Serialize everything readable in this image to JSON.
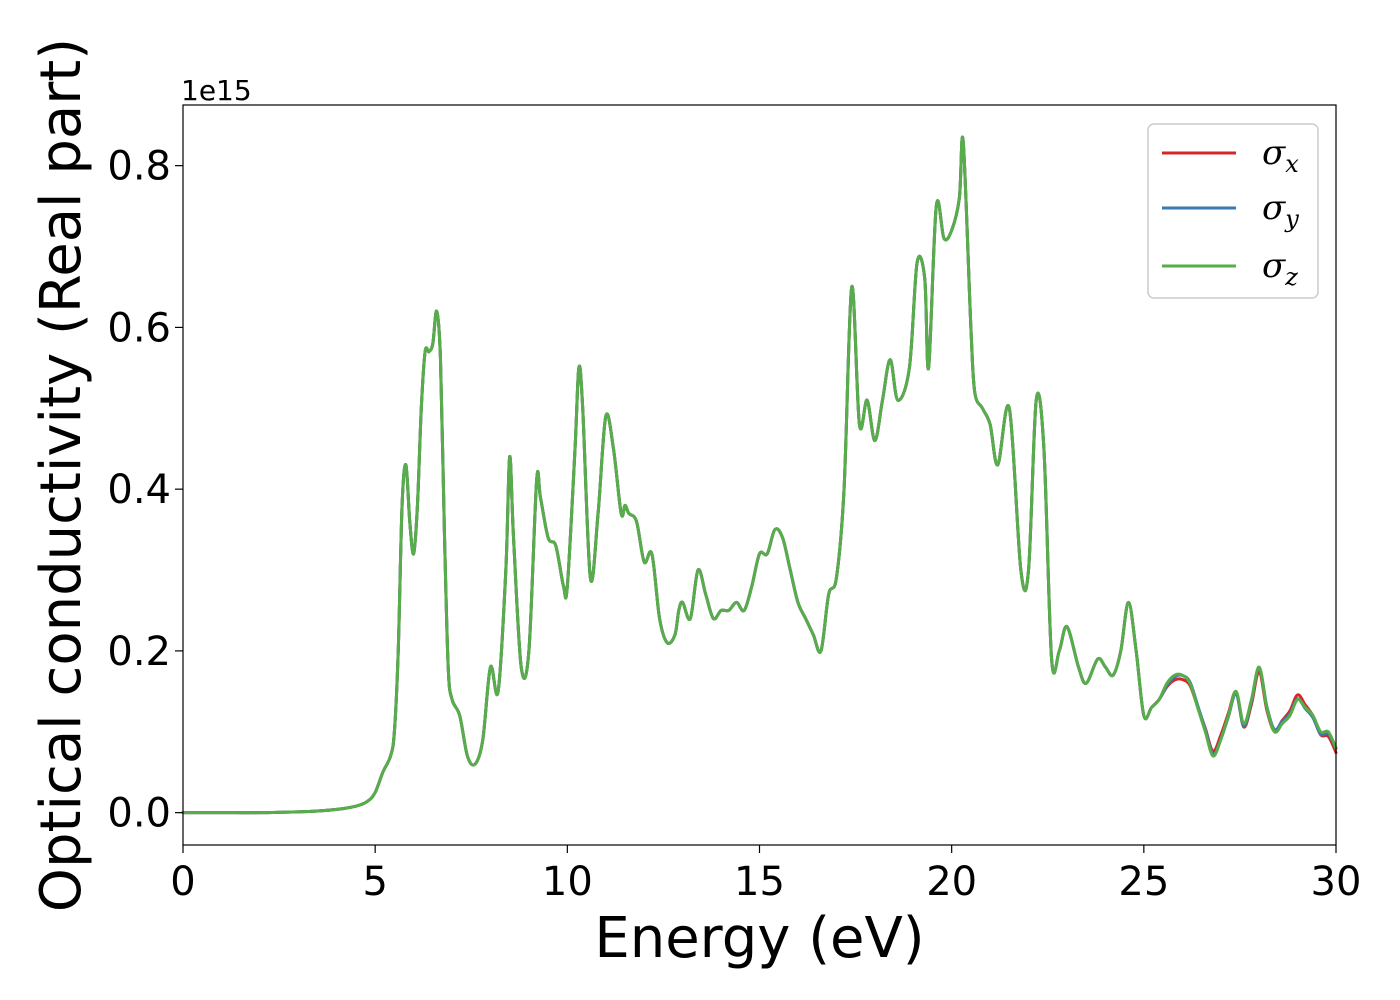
{
  "chart_data": {
    "type": "line",
    "xlabel": "Energy (eV)",
    "ylabel": "Optical conductivity (Real part)",
    "y_offset_label": "1e15",
    "xlim": [
      0,
      30
    ],
    "ylim": [
      -0.04,
      0.875
    ],
    "x_ticks": [
      0,
      5,
      10,
      15,
      20,
      25,
      30
    ],
    "x_tick_labels": [
      "0",
      "5",
      "10",
      "15",
      "20",
      "25",
      "30"
    ],
    "y_ticks": [
      0.0,
      0.2,
      0.4,
      0.6,
      0.8
    ],
    "y_tick_labels": [
      "0.0",
      "0.2",
      "0.4",
      "0.6",
      "0.8"
    ],
    "grid": false,
    "legend_position": "top-right",
    "colors": {
      "sigma_x": "#d62728",
      "sigma_y": "#3a78b0",
      "sigma_z": "#57ad4a"
    },
    "series": [
      {
        "name": "σx",
        "base": "σ",
        "sub": "x",
        "color": "#d62728",
        "dev_start": 25.5,
        "dev_amp": 0.006
      },
      {
        "name": "σy",
        "base": "σ",
        "sub": "y",
        "color": "#3a78b0",
        "dev_start": 25.5,
        "dev_amp": 0.003
      },
      {
        "name": "σz",
        "base": "σ",
        "sub": "z",
        "color": "#57ad4a",
        "dev_start": 99,
        "dev_amp": 0
      }
    ],
    "x": [
      0,
      1,
      2,
      3,
      3.5,
      4,
      4.5,
      4.8,
      5.0,
      5.2,
      5.4,
      5.5,
      5.6,
      5.7,
      5.8,
      5.9,
      6.0,
      6.1,
      6.2,
      6.3,
      6.4,
      6.5,
      6.6,
      6.7,
      6.8,
      6.9,
      7.0,
      7.2,
      7.4,
      7.6,
      7.8,
      8.0,
      8.2,
      8.4,
      8.5,
      8.6,
      8.8,
      9.0,
      9.2,
      9.3,
      9.5,
      9.7,
      9.9,
      10.0,
      10.2,
      10.3,
      10.4,
      10.6,
      10.8,
      11.0,
      11.2,
      11.4,
      11.5,
      11.6,
      11.8,
      12.0,
      12.2,
      12.4,
      12.6,
      12.8,
      12.9,
      13.0,
      13.2,
      13.4,
      13.6,
      13.8,
      14.0,
      14.2,
      14.4,
      14.6,
      14.8,
      15.0,
      15.2,
      15.4,
      15.6,
      15.8,
      16.0,
      16.2,
      16.4,
      16.6,
      16.8,
      17.0,
      17.2,
      17.4,
      17.6,
      17.8,
      18.0,
      18.2,
      18.4,
      18.6,
      18.9,
      19.1,
      19.3,
      19.4,
      19.6,
      19.8,
      20.0,
      20.2,
      20.3,
      20.5,
      20.6,
      20.8,
      21.0,
      21.2,
      21.5,
      21.8,
      22.0,
      22.2,
      22.4,
      22.6,
      22.8,
      23.0,
      23.3,
      23.5,
      23.8,
      24.0,
      24.2,
      24.4,
      24.6,
      24.8,
      25.0,
      25.2,
      25.4,
      25.6,
      25.8,
      26.0,
      26.2,
      26.4,
      26.6,
      26.8,
      27.0,
      27.2,
      27.4,
      27.6,
      27.8,
      28.0,
      28.2,
      28.4,
      28.6,
      28.8,
      29.0,
      29.2,
      29.4,
      29.6,
      29.8,
      30.0
    ],
    "y": [
      0.0,
      0.0,
      0.0,
      0.001,
      0.002,
      0.004,
      0.008,
      0.014,
      0.025,
      0.05,
      0.07,
      0.1,
      0.2,
      0.38,
      0.43,
      0.36,
      0.32,
      0.38,
      0.5,
      0.57,
      0.57,
      0.58,
      0.62,
      0.56,
      0.35,
      0.18,
      0.14,
      0.12,
      0.07,
      0.06,
      0.09,
      0.18,
      0.15,
      0.3,
      0.44,
      0.34,
      0.18,
      0.2,
      0.41,
      0.39,
      0.34,
      0.33,
      0.28,
      0.28,
      0.45,
      0.55,
      0.5,
      0.29,
      0.37,
      0.49,
      0.45,
      0.37,
      0.38,
      0.37,
      0.36,
      0.31,
      0.32,
      0.24,
      0.21,
      0.22,
      0.25,
      0.26,
      0.24,
      0.3,
      0.27,
      0.24,
      0.25,
      0.25,
      0.26,
      0.25,
      0.28,
      0.32,
      0.32,
      0.35,
      0.34,
      0.3,
      0.26,
      0.24,
      0.22,
      0.2,
      0.27,
      0.29,
      0.4,
      0.65,
      0.48,
      0.51,
      0.46,
      0.51,
      0.56,
      0.51,
      0.55,
      0.68,
      0.66,
      0.55,
      0.75,
      0.71,
      0.72,
      0.76,
      0.83,
      0.6,
      0.52,
      0.5,
      0.48,
      0.43,
      0.5,
      0.3,
      0.3,
      0.51,
      0.45,
      0.19,
      0.2,
      0.23,
      0.18,
      0.16,
      0.19,
      0.18,
      0.17,
      0.2,
      0.26,
      0.2,
      0.12,
      0.13,
      0.14,
      0.16,
      0.17,
      0.17,
      0.16,
      0.13,
      0.1,
      0.07,
      0.09,
      0.12,
      0.15,
      0.11,
      0.14,
      0.18,
      0.13,
      0.1,
      0.11,
      0.12,
      0.14,
      0.13,
      0.12,
      0.1,
      0.1,
      0.08
    ]
  }
}
